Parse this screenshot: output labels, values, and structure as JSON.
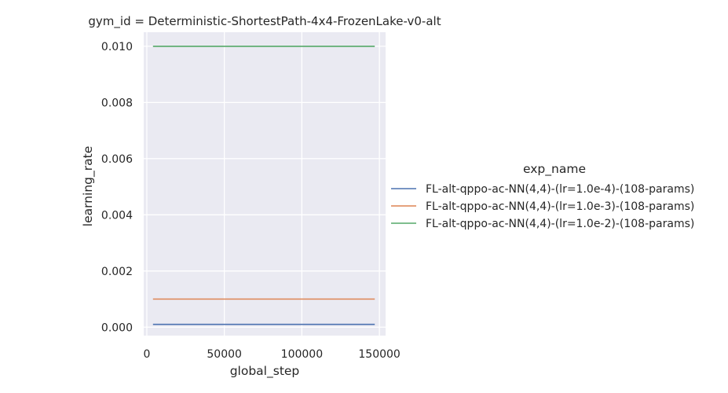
{
  "chart_data": {
    "type": "line",
    "title": "gym_id = Deterministic-ShortestPath-4x4-FrozenLake-v0-alt",
    "xlabel": "global_step",
    "ylabel": "learning_rate",
    "xlim": [
      -2000,
      154000
    ],
    "ylim": [
      -0.0003,
      0.0105
    ],
    "xticks": [
      0,
      50000,
      100000,
      150000
    ],
    "xtick_labels": [
      "0",
      "50000",
      "100000",
      "150000"
    ],
    "yticks": [
      0.0,
      0.002,
      0.004,
      0.006,
      0.008,
      0.01
    ],
    "ytick_labels": [
      "0.000",
      "0.002",
      "0.004",
      "0.006",
      "0.008",
      "0.010"
    ],
    "grid": true,
    "legend": {
      "title": "exp_name",
      "placement": "right"
    },
    "series": [
      {
        "name": "FL-alt-qppo-ac-NN(4,4)-(lr=1.0e-4)-(108-params)",
        "color": "#4c72b0",
        "x": [
          4000,
          147000
        ],
        "y": [
          0.0001,
          0.0001
        ]
      },
      {
        "name": "FL-alt-qppo-ac-NN(4,4)-(lr=1.0e-3)-(108-params)",
        "color": "#dd8452",
        "x": [
          4000,
          147000
        ],
        "y": [
          0.001,
          0.001
        ]
      },
      {
        "name": "FL-alt-qppo-ac-NN(4,4)-(lr=1.0e-2)-(108-params)",
        "color": "#55a868",
        "x": [
          4000,
          147000
        ],
        "y": [
          0.01,
          0.01
        ]
      }
    ]
  }
}
